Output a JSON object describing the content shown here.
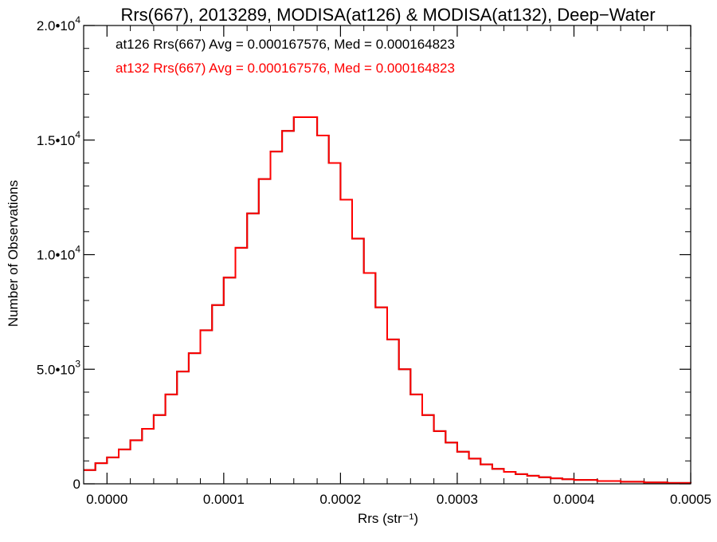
{
  "chart_data": {
    "type": "histogram",
    "title": "Rrs(667), 2013289, MODISA(at126) & MODISA(at132), Deep−Water",
    "xlabel": "Rrs (str⁻¹)",
    "ylabel": "Number of Observations",
    "xlim": [
      -2e-05,
      0.0005
    ],
    "ylim": [
      0,
      20000
    ],
    "x_tick_values": [
      0.0,
      0.0001,
      0.0002,
      0.0003,
      0.0004,
      0.0005
    ],
    "x_tick_labels": [
      "0.0000",
      "0.0001",
      "0.0002",
      "0.0003",
      "0.0004",
      "0.0005"
    ],
    "y_ticks": [
      {
        "value": 0,
        "base": "0",
        "exp": ""
      },
      {
        "value": 5000,
        "base": "5.0•10",
        "exp": "3"
      },
      {
        "value": 10000,
        "base": "1.0•10",
        "exp": "4"
      },
      {
        "value": 15000,
        "base": "1.5•10",
        "exp": "4"
      },
      {
        "value": 20000,
        "base": "2.0•10",
        "exp": "4"
      }
    ],
    "annotations": [
      {
        "text": "at126 Rrs(667) Avg = 0.000167576, Med = 0.000164823",
        "color": "#000000"
      },
      {
        "text": "at132 Rrs(667) Avg = 0.000167576, Med = 0.000164823",
        "color": "#ff0000"
      }
    ],
    "series": [
      {
        "color": "#000000",
        "values": [
          [
            -2e-05,
            600
          ],
          [
            -1e-05,
            900
          ],
          [
            0.0,
            1150
          ],
          [
            1e-05,
            1500
          ],
          [
            2e-05,
            1900
          ],
          [
            3e-05,
            2400
          ],
          [
            4e-05,
            3000
          ],
          [
            5e-05,
            3900
          ],
          [
            6e-05,
            4900
          ],
          [
            7e-05,
            5700
          ],
          [
            8e-05,
            6700
          ],
          [
            9e-05,
            7800
          ],
          [
            0.0001,
            9000
          ],
          [
            0.00011,
            10300
          ],
          [
            0.00012,
            11800
          ],
          [
            0.00013,
            13300
          ],
          [
            0.00014,
            14500
          ],
          [
            0.00015,
            15400
          ],
          [
            0.00016,
            16000
          ],
          [
            0.00017,
            16000
          ],
          [
            0.00018,
            15200
          ],
          [
            0.00019,
            14000
          ],
          [
            0.0002,
            12400
          ],
          [
            0.00021,
            10700
          ],
          [
            0.00022,
            9200
          ],
          [
            0.00023,
            7700
          ],
          [
            0.00024,
            6300
          ],
          [
            0.00025,
            5000
          ],
          [
            0.00026,
            3900
          ],
          [
            0.00027,
            3000
          ],
          [
            0.00028,
            2300
          ],
          [
            0.00029,
            1800
          ],
          [
            0.0003,
            1400
          ],
          [
            0.00031,
            1100
          ],
          [
            0.00032,
            850
          ],
          [
            0.00033,
            650
          ],
          [
            0.00034,
            520
          ],
          [
            0.00035,
            420
          ],
          [
            0.00036,
            350
          ],
          [
            0.00037,
            290
          ],
          [
            0.00038,
            240
          ],
          [
            0.00039,
            200
          ],
          [
            0.0004,
            170
          ],
          [
            0.00042,
            120
          ],
          [
            0.00044,
            90
          ],
          [
            0.00046,
            60
          ],
          [
            0.00048,
            40
          ],
          [
            0.0005,
            30
          ]
        ]
      },
      {
        "color": "#ff0000",
        "values": [
          [
            -2e-05,
            600
          ],
          [
            -1e-05,
            900
          ],
          [
            0.0,
            1150
          ],
          [
            1e-05,
            1500
          ],
          [
            2e-05,
            1900
          ],
          [
            3e-05,
            2400
          ],
          [
            4e-05,
            3000
          ],
          [
            5e-05,
            3900
          ],
          [
            6e-05,
            4900
          ],
          [
            7e-05,
            5700
          ],
          [
            8e-05,
            6700
          ],
          [
            9e-05,
            7800
          ],
          [
            0.0001,
            9000
          ],
          [
            0.00011,
            10300
          ],
          [
            0.00012,
            11800
          ],
          [
            0.00013,
            13300
          ],
          [
            0.00014,
            14500
          ],
          [
            0.00015,
            15400
          ],
          [
            0.00016,
            16000
          ],
          [
            0.00017,
            16000
          ],
          [
            0.00018,
            15200
          ],
          [
            0.00019,
            14000
          ],
          [
            0.0002,
            12400
          ],
          [
            0.00021,
            10700
          ],
          [
            0.00022,
            9200
          ],
          [
            0.00023,
            7700
          ],
          [
            0.00024,
            6300
          ],
          [
            0.00025,
            5000
          ],
          [
            0.00026,
            3900
          ],
          [
            0.00027,
            3000
          ],
          [
            0.00028,
            2300
          ],
          [
            0.00029,
            1800
          ],
          [
            0.0003,
            1400
          ],
          [
            0.00031,
            1100
          ],
          [
            0.00032,
            850
          ],
          [
            0.00033,
            650
          ],
          [
            0.00034,
            520
          ],
          [
            0.00035,
            420
          ],
          [
            0.00036,
            350
          ],
          [
            0.00037,
            290
          ],
          [
            0.00038,
            240
          ],
          [
            0.00039,
            200
          ],
          [
            0.0004,
            170
          ],
          [
            0.00042,
            120
          ],
          [
            0.00044,
            90
          ],
          [
            0.00046,
            60
          ],
          [
            0.00048,
            40
          ],
          [
            0.0005,
            30
          ]
        ]
      }
    ]
  }
}
